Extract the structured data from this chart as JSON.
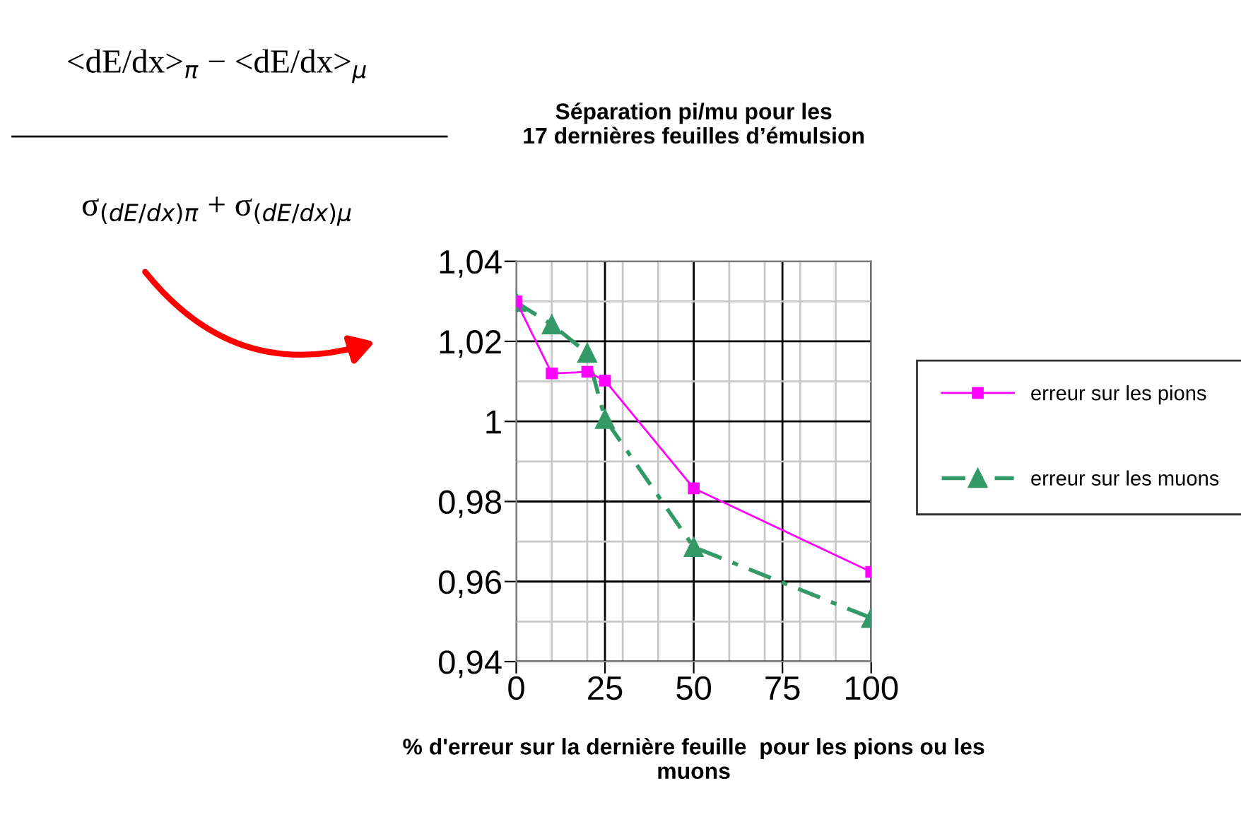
{
  "chart_data": {
    "type": "line",
    "title": "Séparation pi/mu pour les\n17 dernières feuilles d’émulsion",
    "xlabel": "% d'erreur sur la dernière feuille  pour les pions ou les\nmuons",
    "annotations": [
      "<dE/dx>$_{π}$ − <dE/dx>$_{μ}$",
      "σ$_{(dE/dx)π}$ + σ$_{(dE/dx)μ}$"
    ],
    "x": [
      0,
      10,
      20,
      25,
      50,
      100
    ],
    "series": [
      {
        "name": "erreur sur les pions",
        "color": "#ff00ff",
        "values": [
          1.03,
          1.012,
          1.0124,
          1.0102,
          0.9833,
          0.9624
        ],
        "marker": "square",
        "line_style": "solid"
      },
      {
        "name": "erreur sur les muons",
        "color": "#339966",
        "values": [
          1.0298,
          1.0242,
          1.0171,
          1.0006,
          0.9686,
          0.9509
        ],
        "marker": "triangle",
        "line_style": "dashed"
      }
    ],
    "xlim": [
      0,
      100
    ],
    "xticks": [
      0,
      {
        "value": 10,
        "label": null
      },
      {
        "value": 20,
        "label": null
      },
      25,
      {
        "value": 30,
        "label": null
      },
      {
        "value": 40,
        "label": null
      },
      50,
      {
        "value": 60,
        "label": null
      },
      {
        "value": 70,
        "label": null
      },
      75,
      {
        "value": 80,
        "label": null
      },
      {
        "value": 90,
        "label": null
      },
      100
    ],
    "ylim": [
      0.94,
      1.04
    ],
    "yticks": [
      {
        "value": 0.94,
        "label": "0,94"
      },
      {
        "value": 0.95,
        "label": null
      },
      {
        "value": 0.96,
        "label": "0,96"
      },
      {
        "value": 0.97,
        "label": null
      },
      {
        "value": 0.98,
        "label": "0,98"
      },
      {
        "value": 0.99,
        "label": null
      },
      {
        "value": 1,
        "label": "1"
      },
      {
        "value": 1.01,
        "label": null
      },
      {
        "value": 1.02,
        "label": "1,02"
      },
      {
        "value": 1.03,
        "label": null
      },
      {
        "value": 1.04,
        "label": "1,04"
      }
    ],
    "grid": true,
    "legend": "right"
  }
}
